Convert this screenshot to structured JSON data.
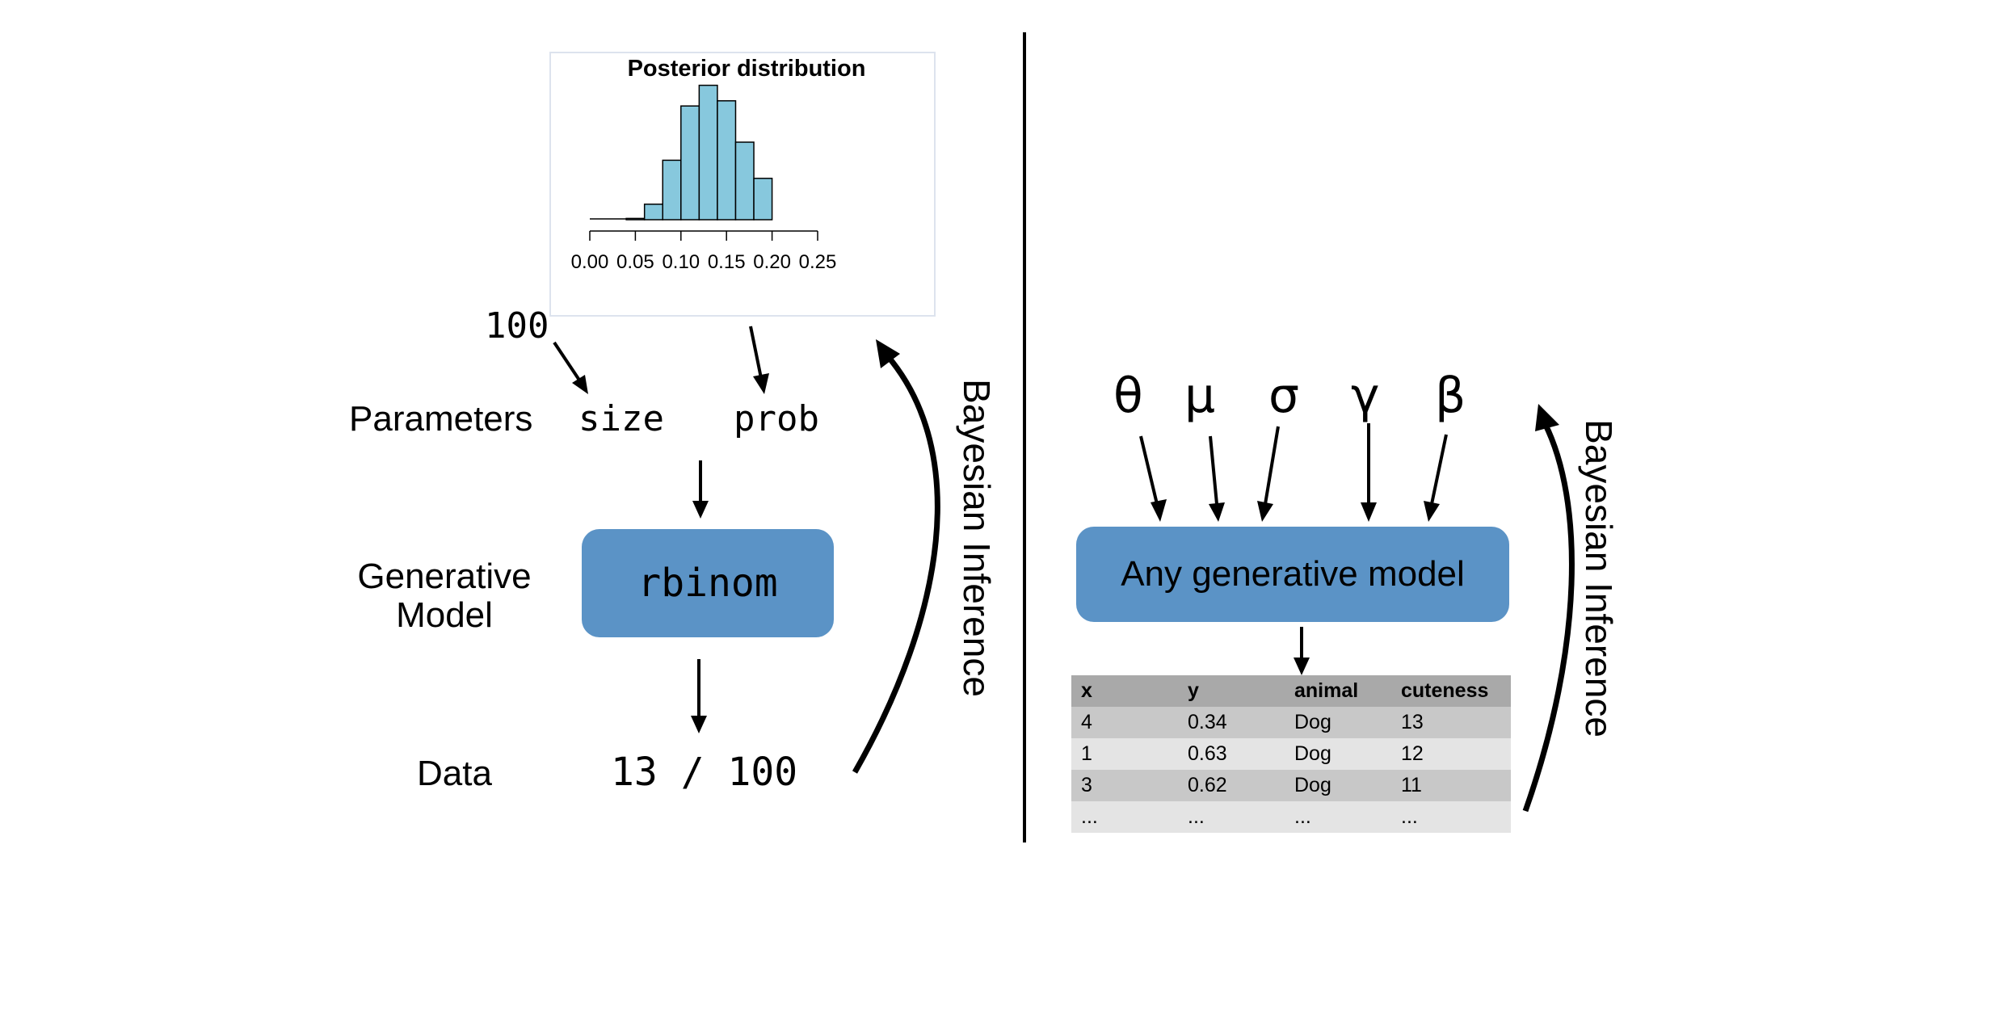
{
  "left": {
    "chart_data": {
      "type": "bar",
      "title": "Posterior distribution",
      "xlabel": "",
      "ylabel": "",
      "x_ticks": [
        "0.00",
        "0.05",
        "0.10",
        "0.15",
        "0.20",
        "0.25"
      ],
      "xlim": [
        0.0,
        0.25
      ],
      "bin_width": 0.02,
      "bins": [
        {
          "x0": 0.04,
          "x1": 0.06,
          "value": 0.5
        },
        {
          "x0": 0.06,
          "x1": 0.08,
          "value": 6
        },
        {
          "x0": 0.08,
          "x1": 0.1,
          "value": 23
        },
        {
          "x0": 0.1,
          "x1": 0.12,
          "value": 44
        },
        {
          "x0": 0.12,
          "x1": 0.14,
          "value": 52
        },
        {
          "x0": 0.14,
          "x1": 0.16,
          "value": 46
        },
        {
          "x0": 0.16,
          "x1": 0.18,
          "value": 30
        },
        {
          "x0": 0.18,
          "x1": 0.2,
          "value": 16
        }
      ],
      "ylim": [
        0,
        55
      ],
      "bar_color": "#87c8dd"
    },
    "size_value": "100",
    "params_label": "Parameters",
    "param_size": "size",
    "param_prob": "prob",
    "model_label_line1": "Generative",
    "model_label_line2": "Model",
    "model_name": "rbinom",
    "data_label": "Data",
    "data_value": "13 / 100",
    "inference_label": "Bayesian Inference"
  },
  "right": {
    "params": [
      "θ",
      "μ",
      "σ",
      "γ",
      "β"
    ],
    "model_name": "Any generative model",
    "inference_label": "Bayesian Inference",
    "table": {
      "headers": [
        "x",
        "y",
        "animal",
        "cuteness"
      ],
      "rows": [
        [
          "4",
          "0.34",
          "Dog",
          "13"
        ],
        [
          "1",
          "0.63",
          "Dog",
          "12"
        ],
        [
          "3",
          "0.62",
          "Dog",
          "11"
        ],
        [
          "...",
          "...",
          "...",
          "..."
        ]
      ]
    }
  },
  "colors": {
    "model_box": "#5b93c6",
    "bar_fill": "#87c8dd",
    "table_header": "#a9a9a9"
  }
}
